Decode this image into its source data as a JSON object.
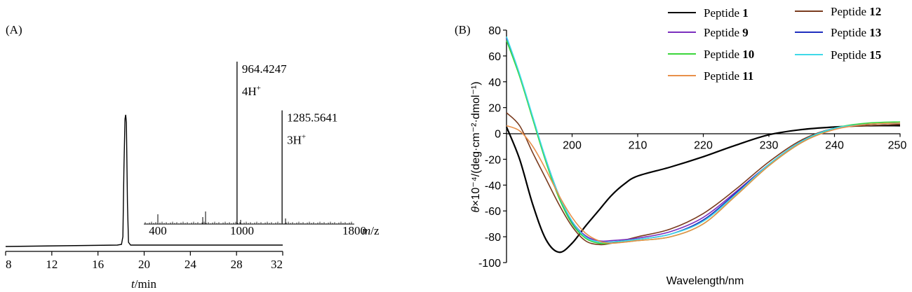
{
  "panel_a_label": "(A)",
  "panel_b_label": "(B)",
  "chart_data": [
    {
      "type": "line",
      "name": "HPLC chromatogram",
      "xlabel_italic": "t",
      "xlabel_rest": "/min",
      "xlim": [
        8,
        32
      ],
      "xticks": [
        8,
        12,
        16,
        20,
        24,
        28,
        32
      ],
      "peak_time": 18.4,
      "baseline": "flat",
      "inset": {
        "type": "line",
        "name": "Mass spectrum",
        "xlim": [
          300,
          1800
        ],
        "xticks": [
          400,
          1000,
          1800
        ],
        "xlabel_italic": "m",
        "xlabel_rest": "/z",
        "peaks": [
          {
            "mz": 964.4247,
            "label": "964.4247",
            "charge": "4H",
            "sup": "+",
            "rel_intensity": 1.0
          },
          {
            "mz": 1285.5641,
            "label": "1285.5641",
            "charge": "3H",
            "sup": "+",
            "rel_intensity": 0.7
          }
        ],
        "minor_peaks_mz": [
          400,
          720,
          740,
          990,
          1310
        ]
      }
    },
    {
      "type": "line",
      "name": "Circular dichroism spectra",
      "xlabel": "Wavelength/nm",
      "ylabel_theta": "θ",
      "ylabel_rest": "×10⁻⁴/(deg·cm⁻²·dmol⁻¹)",
      "xlim": [
        190,
        250
      ],
      "ylim": [
        -100,
        80
      ],
      "xticks": [
        200,
        210,
        220,
        230,
        240,
        250
      ],
      "yticks": [
        80,
        60,
        40,
        20,
        0,
        -20,
        -40,
        -60,
        -80,
        -100
      ],
      "legend_position": "top-right",
      "series": [
        {
          "name": "Peptide ",
          "num": "1",
          "color": "#000000",
          "points": [
            [
              190,
              5
            ],
            [
              192,
              -20
            ],
            [
              194,
              -55
            ],
            [
              196,
              -82
            ],
            [
              198,
              -92
            ],
            [
              200,
              -85
            ],
            [
              202,
              -72
            ],
            [
              204,
              -60
            ],
            [
              206,
              -48
            ],
            [
              208,
              -39
            ],
            [
              210,
              -33
            ],
            [
              215,
              -26
            ],
            [
              220,
              -18
            ],
            [
              225,
              -9
            ],
            [
              230,
              -1
            ],
            [
              235,
              3
            ],
            [
              240,
              5
            ],
            [
              245,
              6
            ],
            [
              250,
              6
            ]
          ]
        },
        {
          "name": "Peptide ",
          "num": "12",
          "color": "#7a3b1e",
          "points": [
            [
              190,
              16
            ],
            [
              192,
              6
            ],
            [
              194,
              -15
            ],
            [
              196,
              -35
            ],
            [
              198,
              -55
            ],
            [
              200,
              -72
            ],
            [
              202,
              -83
            ],
            [
              204,
              -86
            ],
            [
              206,
              -85
            ],
            [
              210,
              -80
            ],
            [
              215,
              -74
            ],
            [
              220,
              -62
            ],
            [
              225,
              -43
            ],
            [
              230,
              -22
            ],
            [
              235,
              -5
            ],
            [
              240,
              4
            ],
            [
              245,
              6
            ],
            [
              250,
              7
            ]
          ]
        },
        {
          "name": "Peptide ",
          "num": "9",
          "color": "#7b2fbe",
          "points": [
            [
              190,
              73
            ],
            [
              192,
              45
            ],
            [
              194,
              12
            ],
            [
              196,
              -20
            ],
            [
              198,
              -48
            ],
            [
              200,
              -68
            ],
            [
              202,
              -79
            ],
            [
              204,
              -83
            ],
            [
              206,
              -83
            ],
            [
              210,
              -81
            ],
            [
              215,
              -76
            ],
            [
              220,
              -65
            ],
            [
              225,
              -45
            ],
            [
              230,
              -24
            ],
            [
              235,
              -6
            ],
            [
              240,
              4
            ],
            [
              245,
              7
            ],
            [
              250,
              8
            ]
          ]
        },
        {
          "name": "Peptide ",
          "num": "13",
          "color": "#1f2fbf",
          "points": [
            [
              190,
              74
            ],
            [
              192,
              45
            ],
            [
              194,
              12
            ],
            [
              196,
              -21
            ],
            [
              198,
              -49
            ],
            [
              200,
              -69
            ],
            [
              202,
              -80
            ],
            [
              204,
              -84
            ],
            [
              206,
              -84
            ],
            [
              210,
              -82
            ],
            [
              215,
              -78
            ],
            [
              220,
              -67
            ],
            [
              225,
              -46
            ],
            [
              230,
              -24
            ],
            [
              235,
              -6
            ],
            [
              240,
              4
            ],
            [
              245,
              7
            ],
            [
              250,
              8
            ]
          ]
        },
        {
          "name": "Peptide ",
          "num": "10",
          "color": "#3bd63b",
          "points": [
            [
              190,
              72
            ],
            [
              192,
              44
            ],
            [
              194,
              11
            ],
            [
              196,
              -22
            ],
            [
              198,
              -50
            ],
            [
              200,
              -70
            ],
            [
              202,
              -81
            ],
            [
              204,
              -85
            ],
            [
              206,
              -85
            ],
            [
              210,
              -83
            ],
            [
              215,
              -80
            ],
            [
              220,
              -70
            ],
            [
              225,
              -48
            ],
            [
              230,
              -25
            ],
            [
              235,
              -7
            ],
            [
              240,
              4
            ],
            [
              245,
              8
            ],
            [
              250,
              9
            ]
          ]
        },
        {
          "name": "Peptide ",
          "num": "15",
          "color": "#3fd9e8",
          "points": [
            [
              190,
              75
            ],
            [
              192,
              46
            ],
            [
              194,
              13
            ],
            [
              196,
              -20
            ],
            [
              198,
              -48
            ],
            [
              200,
              -68
            ],
            [
              202,
              -80
            ],
            [
              204,
              -84
            ],
            [
              206,
              -84
            ],
            [
              210,
              -82
            ],
            [
              215,
              -78
            ],
            [
              220,
              -68
            ],
            [
              225,
              -47
            ],
            [
              230,
              -24
            ],
            [
              235,
              -6
            ],
            [
              240,
              4
            ],
            [
              245,
              7
            ],
            [
              250,
              8
            ]
          ]
        },
        {
          "name": "Peptide ",
          "num": "11",
          "color": "#e8904a",
          "points": [
            [
              190,
              6
            ],
            [
              192,
              2
            ],
            [
              194,
              -10
            ],
            [
              196,
              -28
            ],
            [
              198,
              -48
            ],
            [
              200,
              -65
            ],
            [
              202,
              -77
            ],
            [
              204,
              -83
            ],
            [
              206,
              -85
            ],
            [
              210,
              -83
            ],
            [
              215,
              -80
            ],
            [
              220,
              -70
            ],
            [
              225,
              -48
            ],
            [
              230,
              -25
            ],
            [
              235,
              -7
            ],
            [
              240,
              3
            ],
            [
              245,
              7
            ],
            [
              250,
              8
            ]
          ]
        }
      ]
    }
  ]
}
